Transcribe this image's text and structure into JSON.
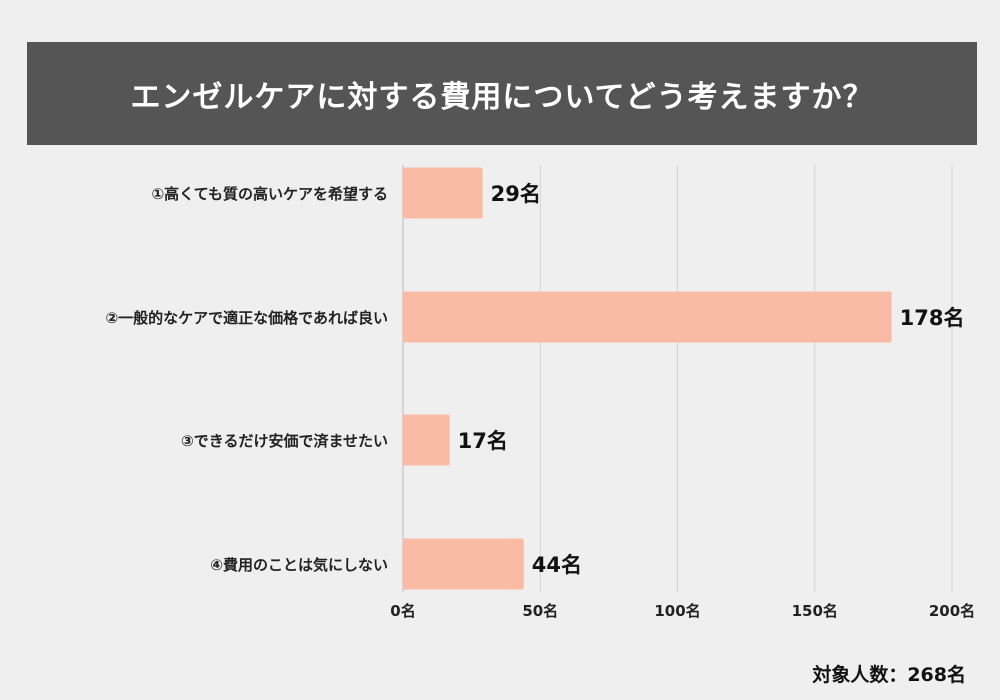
{
  "chart_data": {
    "type": "bar",
    "orientation": "horizontal",
    "title": "エンゼルケアに対する費用についてどう考えますか？",
    "categories": [
      "①高くても質の高いケアを希望する",
      "②一般的なケアで適正な価格であれば良い",
      "③できるだけ安価で済ませたい",
      "④費用のことは気にしない"
    ],
    "values": [
      29,
      178,
      17,
      44
    ],
    "value_labels": [
      "29名",
      "178名",
      "17名",
      "44名"
    ],
    "xlim": [
      0,
      200
    ],
    "xticks": [
      0,
      50,
      100,
      150,
      200
    ],
    "xtick_labels": [
      "0名",
      "50名",
      "100名",
      "150名",
      "200名"
    ],
    "grid": true,
    "bar_color": "#f9bba4",
    "note": "対象人数：268名"
  }
}
